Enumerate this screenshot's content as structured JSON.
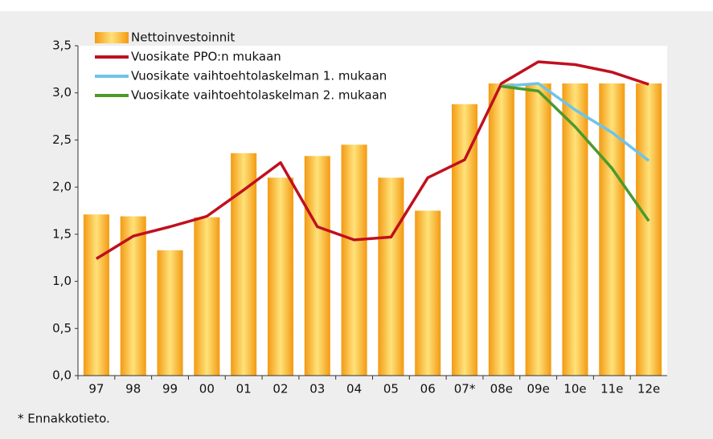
{
  "chart_data": {
    "type": "bar_line",
    "categories": [
      "97",
      "98",
      "99",
      "00",
      "01",
      "02",
      "03",
      "04",
      "05",
      "06",
      "07*",
      "08e",
      "09e",
      "10e",
      "11e",
      "12e"
    ],
    "series": [
      {
        "name": "Nettoinvestoinnit",
        "type": "bar",
        "color": "#f7a21b",
        "values": [
          1.71,
          1.69,
          1.33,
          1.68,
          2.36,
          2.1,
          2.33,
          2.45,
          2.1,
          1.75,
          2.88,
          3.1,
          3.1,
          3.1,
          3.1,
          3.1
        ]
      },
      {
        "name": "Vuosikate PPO:n mukaan",
        "type": "line",
        "color": "#c0101e",
        "values": [
          1.24,
          1.48,
          1.58,
          1.69,
          1.97,
          2.26,
          1.58,
          1.44,
          1.47,
          2.1,
          2.29,
          3.1,
          3.33,
          3.3,
          3.22,
          3.09
        ]
      },
      {
        "name": "Vuosikate vaihtoehtolaskelman 1. mukaan",
        "type": "line",
        "color": "#6cc4ea",
        "values": [
          null,
          null,
          null,
          null,
          null,
          null,
          null,
          null,
          null,
          null,
          null,
          3.07,
          3.1,
          2.82,
          2.58,
          2.28
        ]
      },
      {
        "name": "Vuosikate vaihtoehtolaskelman 2. mukaan",
        "type": "line",
        "color": "#4a9a2c",
        "values": [
          null,
          null,
          null,
          null,
          null,
          null,
          null,
          null,
          null,
          null,
          null,
          3.07,
          3.02,
          2.64,
          2.2,
          1.64
        ]
      }
    ],
    "ylim": [
      0,
      3.5
    ],
    "yticks": [
      {
        "value": 0,
        "label": "0,0"
      },
      {
        "value": 0.5,
        "label": "0,5"
      },
      {
        "value": 1,
        "label": "1,0"
      },
      {
        "value": 1.5,
        "label": "1,5"
      },
      {
        "value": 2,
        "label": "2,0"
      },
      {
        "value": 2.5,
        "label": "2,5"
      },
      {
        "value": 3,
        "label": "3,0"
      },
      {
        "value": 3.5,
        "label": "3,5"
      }
    ],
    "grid": false,
    "legend": "top-left",
    "footnote": "* Ennakkotieto."
  }
}
